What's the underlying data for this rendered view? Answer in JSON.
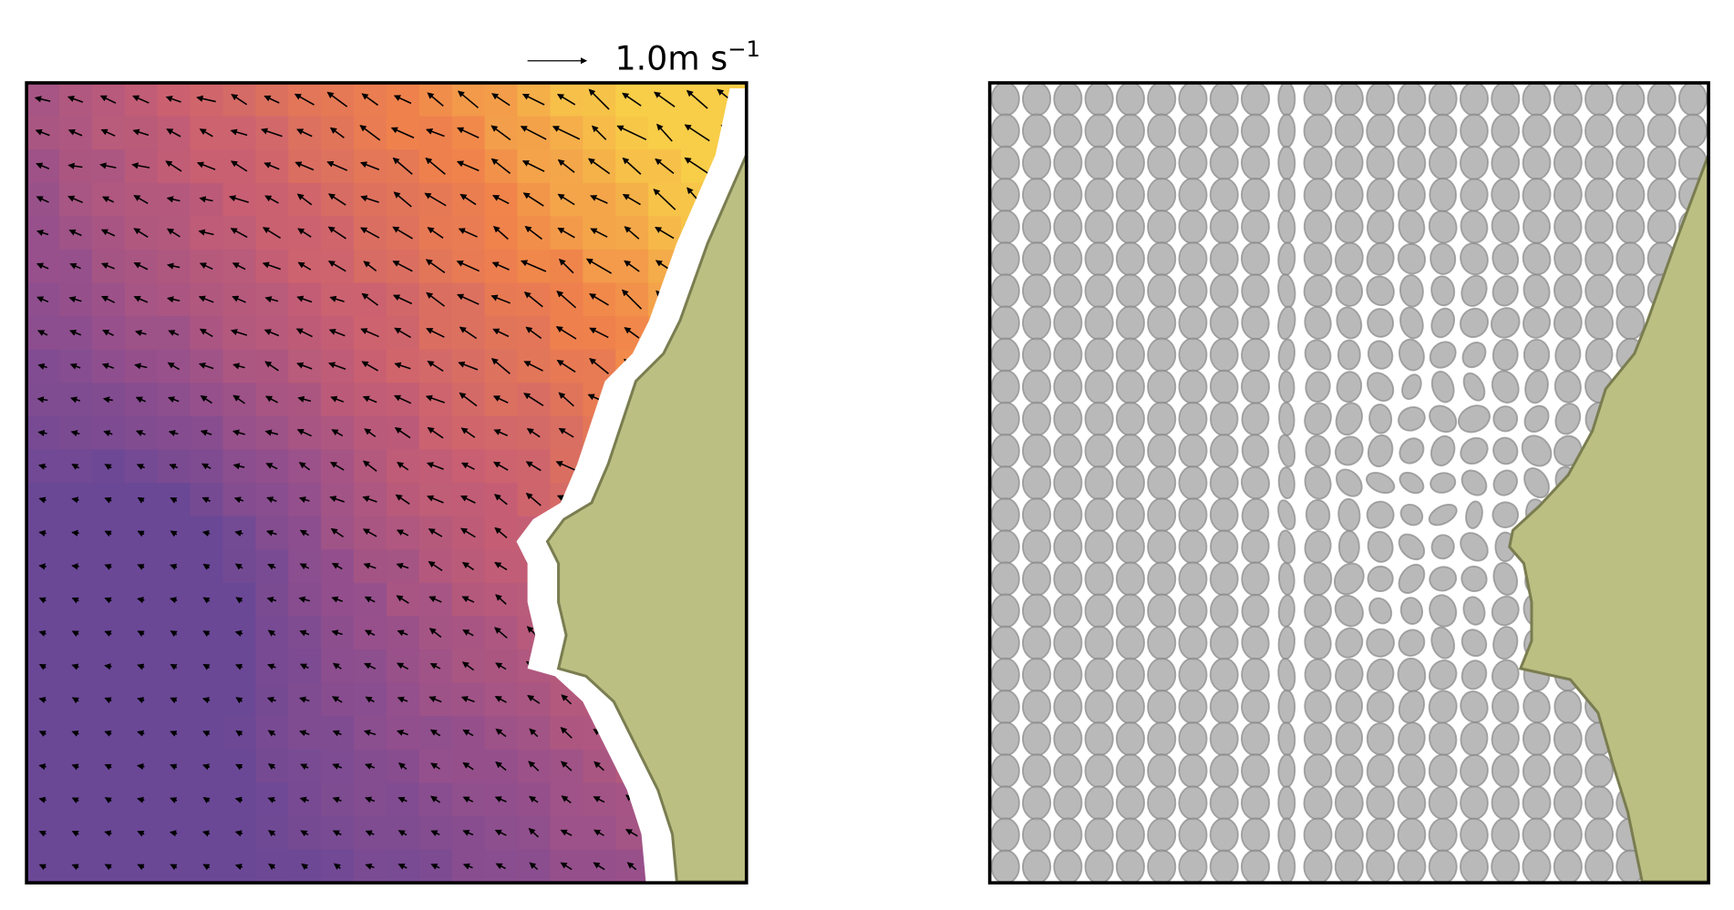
{
  "quiver_key": {
    "label": "1.0m s",
    "exponent": "−1"
  }
}
